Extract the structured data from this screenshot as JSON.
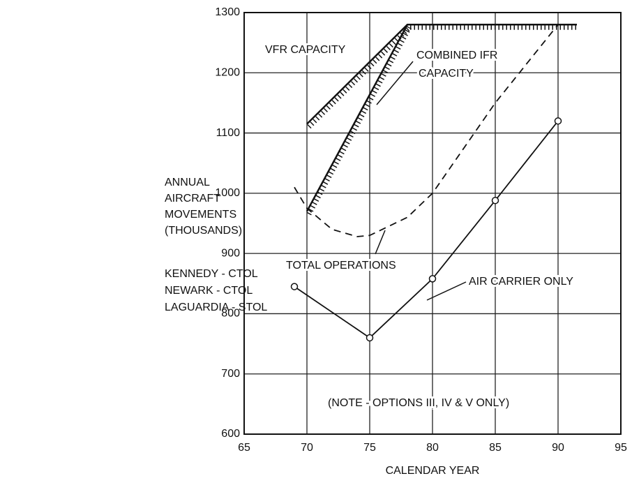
{
  "chart_data": {
    "type": "line",
    "xlabel": "CALENDAR YEAR",
    "ylabel_lines": [
      "ANNUAL",
      "AIRCRAFT",
      "MOVEMENTS",
      "(THOUSANDS)"
    ],
    "notes": [
      "KENNEDY - CTOL",
      "NEWARK - CTOL",
      "LAGUARDIA - STOL"
    ],
    "annotations": [
      "VFR CAPACITY",
      "COMBINED IFR",
      "CAPACITY",
      "TOTAL OPERATIONS",
      "AIR CARRIER ONLY",
      "(NOTE - OPTIONS III, IV & V ONLY)"
    ],
    "xlim": [
      65,
      95
    ],
    "xticks": [
      65,
      70,
      75,
      80,
      85,
      90,
      95
    ],
    "ylim": [
      600,
      1300
    ],
    "yticks": [
      600,
      700,
      800,
      900,
      1000,
      1100,
      1200,
      1300
    ],
    "grid": true,
    "series": [
      {
        "name": "VFR CAPACITY",
        "color": "#111",
        "style": "hatched",
        "x": [
          70,
          78,
          91.5
        ],
        "values": [
          1115,
          1280,
          1280
        ]
      },
      {
        "name": "COMBINED IFR CAPACITY",
        "color": "#111",
        "style": "hatched",
        "x": [
          70,
          78
        ],
        "values": [
          970,
          1280
        ]
      },
      {
        "name": "TOTAL OPERATIONS",
        "color": "#111",
        "style": "dashed",
        "x": [
          69,
          70,
          72,
          74,
          75,
          78,
          80,
          85,
          90
        ],
        "values": [
          1010,
          975,
          940,
          928,
          930,
          960,
          1000,
          1150,
          1280
        ]
      },
      {
        "name": "AIR CARRIER ONLY",
        "color": "#111",
        "style": "solid",
        "markers": true,
        "x": [
          69,
          75,
          80,
          85,
          90
        ],
        "values": [
          845,
          760,
          858,
          988,
          1120
        ]
      }
    ]
  }
}
